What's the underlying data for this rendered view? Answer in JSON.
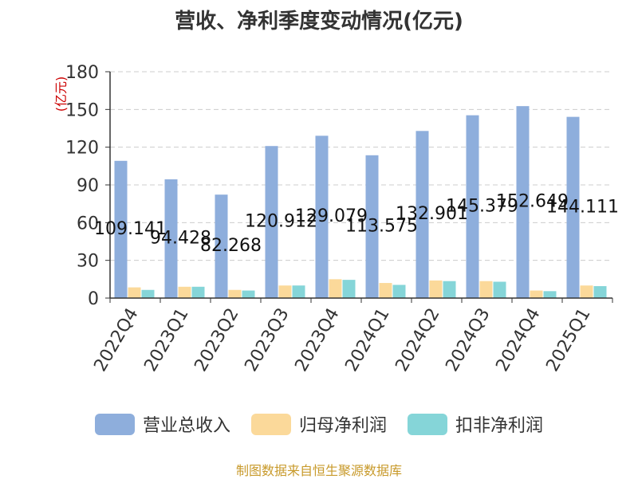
{
  "chart_data": {
    "type": "bar",
    "title": "营收、净利季度变动情况(亿元)",
    "ylabel": "(亿元)",
    "ylim": [
      0,
      180
    ],
    "yticks": [
      0,
      30,
      60,
      90,
      120,
      150,
      180
    ],
    "categories": [
      "2022Q4",
      "2023Q1",
      "2023Q2",
      "2023Q3",
      "2023Q4",
      "2024Q1",
      "2024Q2",
      "2024Q3",
      "2024Q4",
      "2025Q1"
    ],
    "series": [
      {
        "name": "营业总收入",
        "color": "#8eaedc",
        "values": [
          109.141,
          94.428,
          82.268,
          120.912,
          129.079,
          113.575,
          132.901,
          145.379,
          152.649,
          144.111
        ],
        "labels": [
          "109.141",
          "94.428",
          "82.268",
          "120.912",
          "129.079",
          "113.575",
          "132.901",
          "145.379",
          "152.649",
          "144.111"
        ]
      },
      {
        "name": "归母净利润",
        "color": "#fbd99a",
        "values": [
          8.5,
          9.0,
          6.5,
          10.0,
          15.0,
          12.0,
          14.0,
          13.5,
          6.0,
          10.0
        ]
      },
      {
        "name": "扣非净利润",
        "color": "#85d5d8",
        "values": [
          6.5,
          9.0,
          6.0,
          10.0,
          14.5,
          10.5,
          13.5,
          13.0,
          5.5,
          9.5
        ]
      }
    ],
    "grid": true,
    "legend_position": "bottom"
  },
  "source": "制图数据来自恒生聚源数据库"
}
